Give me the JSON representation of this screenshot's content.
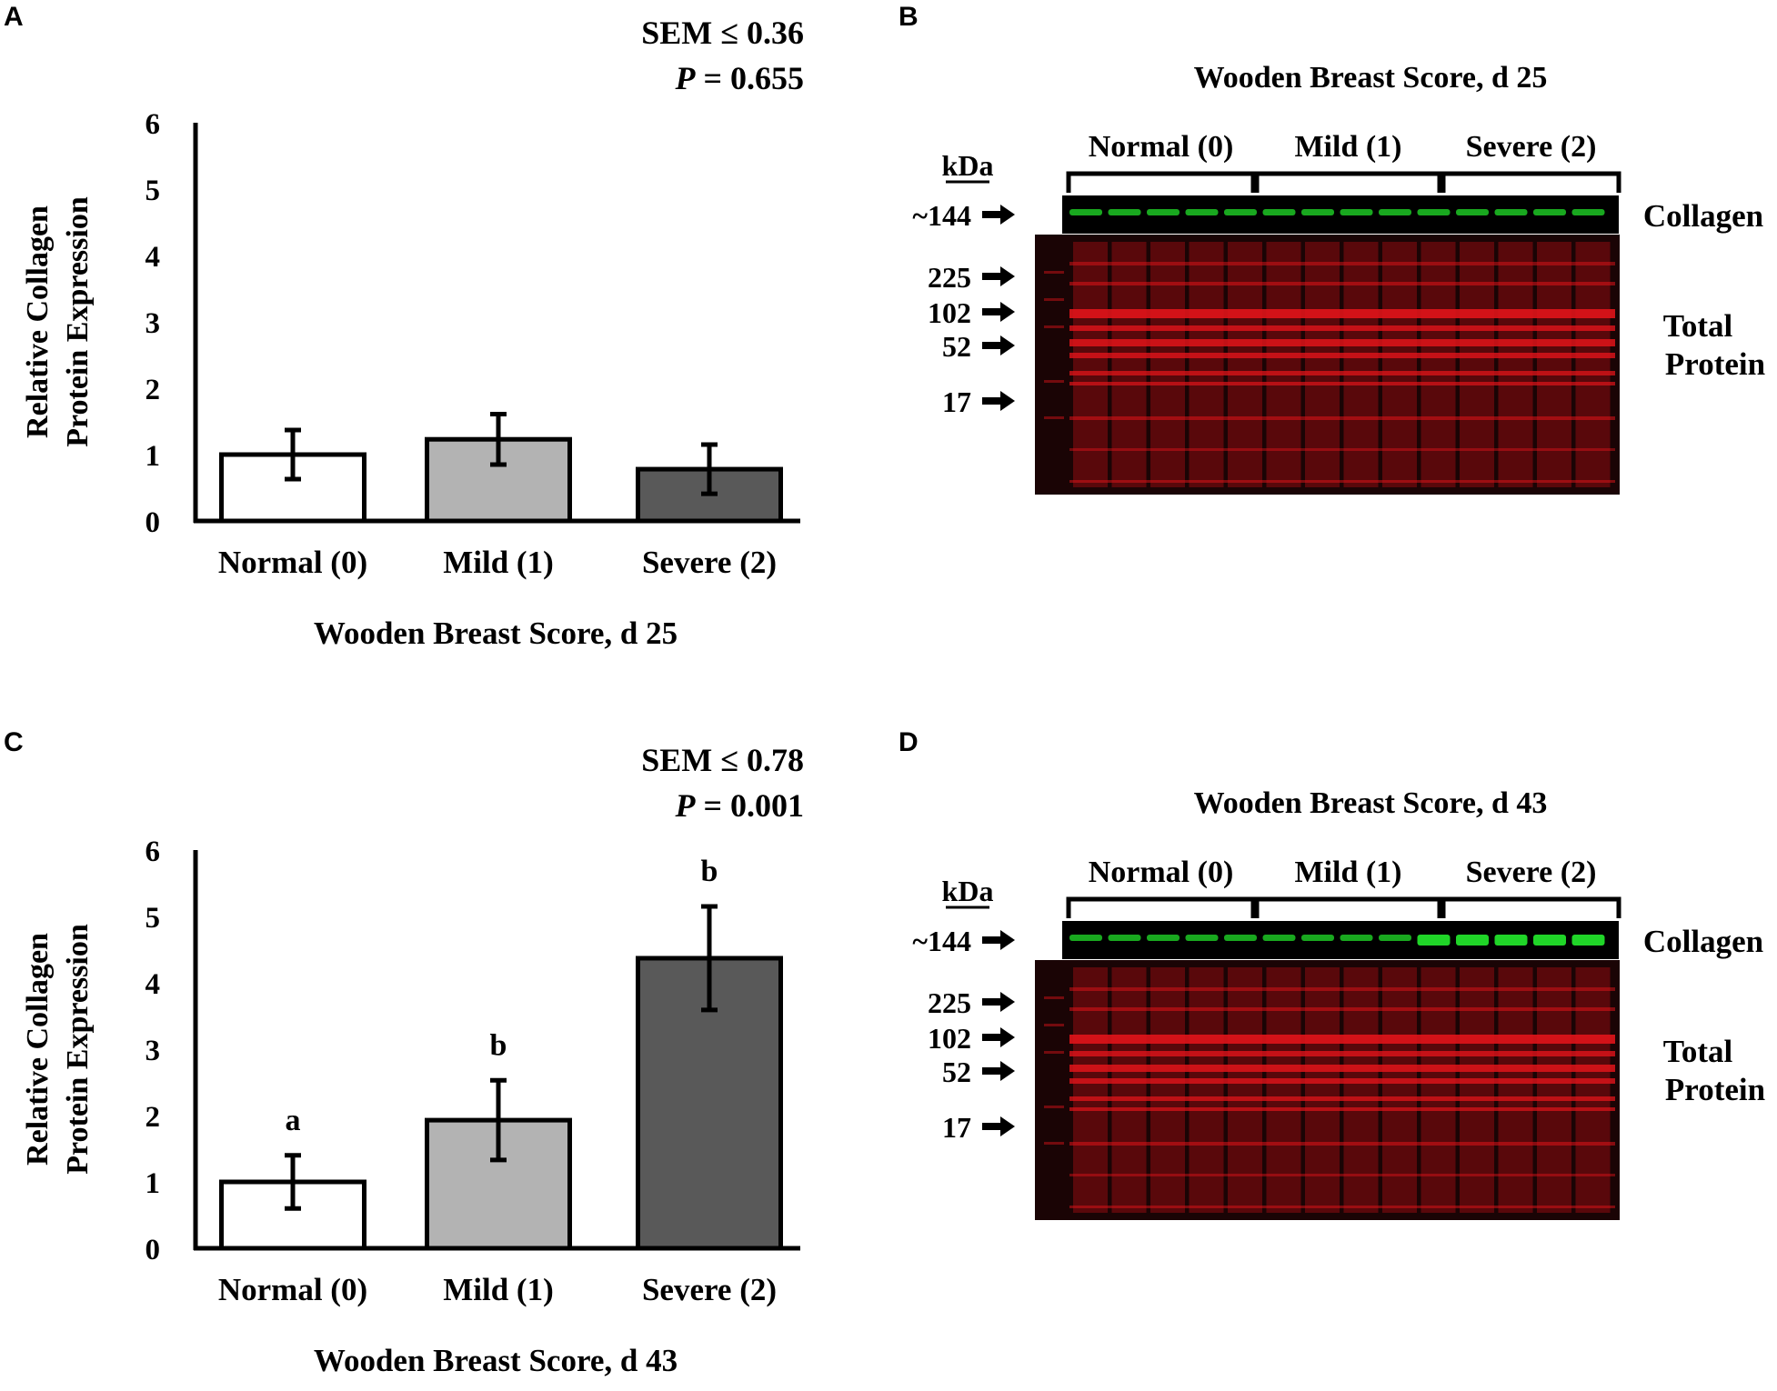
{
  "panels": {
    "A": "A",
    "B": "B",
    "C": "C",
    "D": "D"
  },
  "chart_data": [
    {
      "id": "A",
      "type": "bar",
      "title": "",
      "stats": {
        "sem": "SEM ≤ 0.36",
        "p_label": "P",
        "p_value": "= 0.655"
      },
      "categories": [
        "Normal (0)",
        "Mild (1)",
        "Severe (2)"
      ],
      "values": [
        1.0,
        1.23,
        0.78
      ],
      "errors": [
        0.37,
        0.38,
        0.37
      ],
      "bar_colors": [
        "#ffffff",
        "#b3b3b3",
        "#595959"
      ],
      "letters": [
        "",
        "",
        ""
      ],
      "xlabel": "Wooden Breast Score, d 25",
      "ylabel_lines": [
        "Relative Collagen",
        "Protein Expression"
      ],
      "ylim": [
        0,
        6
      ],
      "yticks": [
        "0",
        "1",
        "2",
        "3",
        "4",
        "5",
        "6"
      ],
      "grid": false
    },
    {
      "id": "C",
      "type": "bar",
      "title": "",
      "stats": {
        "sem": "SEM ≤ 0.78",
        "p_label": "P",
        "p_value": "= 0.001"
      },
      "categories": [
        "Normal (0)",
        "Mild (1)",
        "Severe (2)"
      ],
      "values": [
        1.0,
        1.93,
        4.37
      ],
      "errors": [
        0.4,
        0.6,
        0.78
      ],
      "bar_colors": [
        "#ffffff",
        "#b3b3b3",
        "#595959"
      ],
      "letters": [
        "a",
        "b",
        "b"
      ],
      "xlabel": "Wooden Breast Score, d 43",
      "ylabel_lines": [
        "Relative Collagen",
        "Protein Expression"
      ],
      "ylim": [
        0,
        6
      ],
      "yticks": [
        "0",
        "1",
        "2",
        "3",
        "4",
        "5",
        "6"
      ],
      "grid": false
    }
  ],
  "blots": [
    {
      "id": "B",
      "title": "Wooden Breast Score, d 25",
      "groups": [
        "Normal (0)",
        "Mild (1)",
        "Severe (2)"
      ],
      "kda_label": "kDa",
      "collagen_marker": "~144",
      "collagen_label": "Collagen",
      "markers": [
        "225",
        "102",
        "52",
        "17"
      ],
      "total_label_lines": [
        "Total",
        "Protein"
      ],
      "collagen_color": "#22e02a",
      "protein_color": "#e0141a"
    },
    {
      "id": "D",
      "title": "Wooden Breast Score, d 43",
      "groups": [
        "Normal (0)",
        "Mild (1)",
        "Severe (2)"
      ],
      "kda_label": "kDa",
      "collagen_marker": "~144",
      "collagen_label": "Collagen",
      "markers": [
        "225",
        "102",
        "52",
        "17"
      ],
      "total_label_lines": [
        "Total",
        "Protein"
      ],
      "collagen_color": "#22e02a",
      "protein_color": "#e0141a"
    }
  ]
}
